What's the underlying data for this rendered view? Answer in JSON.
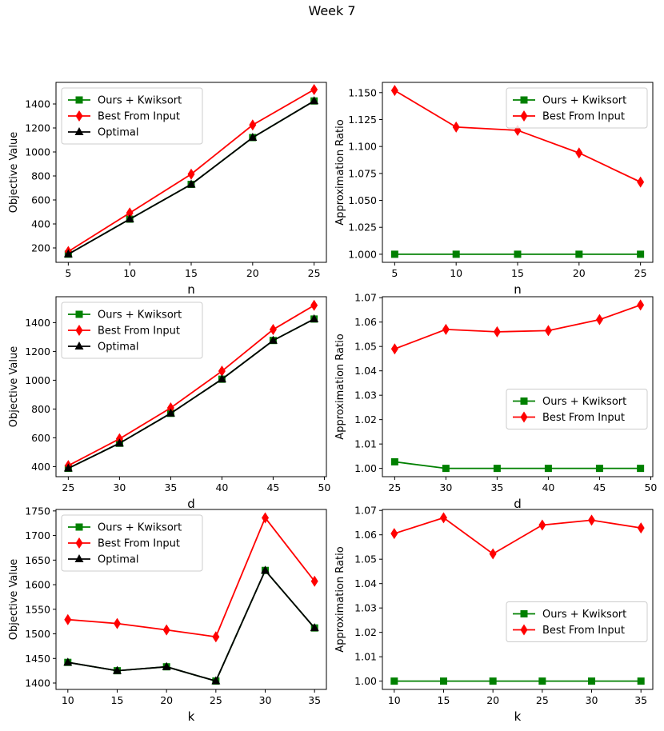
{
  "figure": {
    "title": "Week 7"
  },
  "colors": {
    "green": "#008000",
    "red": "#ff0000",
    "black": "#000000"
  },
  "chart_data": [
    {
      "type": "line",
      "xlabel": "n",
      "ylabel": "Objective Value",
      "x": [
        5,
        10,
        15,
        20,
        25
      ],
      "xlim": [
        4,
        26
      ],
      "ylim": [
        80,
        1580
      ],
      "xticks": [
        5,
        10,
        15,
        20,
        25
      ],
      "yticks": [
        200,
        400,
        600,
        800,
        1000,
        1200,
        1400
      ],
      "legend": "upper-left",
      "series": [
        {
          "name": "Ours + Kwiksort",
          "color": "#008000",
          "marker": "square",
          "values": [
            148,
            440,
            730,
            1120,
            1425
          ]
        },
        {
          "name": "Best From Input",
          "color": "#ff0000",
          "marker": "diamond",
          "values": [
            170,
            492,
            815,
            1225,
            1520
          ]
        },
        {
          "name": "Optimal",
          "color": "#000000",
          "marker": "triangle",
          "values": [
            148,
            440,
            730,
            1120,
            1425
          ]
        }
      ]
    },
    {
      "type": "line",
      "xlabel": "n",
      "ylabel": "Approximation Ratio",
      "x": [
        5,
        10,
        15,
        20,
        25
      ],
      "xlim": [
        4,
        26
      ],
      "ylim": [
        0.9925,
        1.1595
      ],
      "xticks": [
        5,
        10,
        15,
        20,
        25
      ],
      "yticks": [
        "1.000",
        "1.025",
        "1.050",
        "1.075",
        "1.100",
        "1.125",
        "1.150"
      ],
      "legend": "upper-right",
      "series": [
        {
          "name": "Ours + Kwiksort",
          "color": "#008000",
          "marker": "square",
          "values": [
            1.0,
            1.0,
            1.0,
            1.0,
            1.0
          ]
        },
        {
          "name": "Best From Input",
          "color": "#ff0000",
          "marker": "diamond",
          "values": [
            1.152,
            1.118,
            1.115,
            1.094,
            1.067
          ]
        }
      ]
    },
    {
      "type": "line",
      "xlabel": "d",
      "ylabel": "Objective Value",
      "x": [
        25,
        30,
        35,
        40,
        45,
        49
      ],
      "xlim": [
        23.8,
        50.2
      ],
      "ylim": [
        330,
        1580
      ],
      "xticks": [
        25,
        30,
        35,
        40,
        45,
        50
      ],
      "yticks": [
        400,
        600,
        800,
        1000,
        1200,
        1400
      ],
      "legend": "upper-left",
      "series": [
        {
          "name": "Ours + Kwiksort",
          "color": "#008000",
          "marker": "square",
          "values": [
            388,
            562,
            770,
            1007,
            1276,
            1425
          ]
        },
        {
          "name": "Best From Input",
          "color": "#ff0000",
          "marker": "diamond",
          "values": [
            407,
            593,
            808,
            1063,
            1352,
            1520
          ]
        },
        {
          "name": "Optimal",
          "color": "#000000",
          "marker": "triangle",
          "values": [
            388,
            562,
            770,
            1007,
            1276,
            1425
          ]
        }
      ]
    },
    {
      "type": "line",
      "xlabel": "d",
      "ylabel": "Approximation Ratio",
      "x": [
        25,
        30,
        35,
        40,
        45,
        49
      ],
      "xlim": [
        23.8,
        50.2
      ],
      "ylim": [
        0.9966,
        1.0704
      ],
      "xticks": [
        25,
        30,
        35,
        40,
        45,
        50
      ],
      "yticks": [
        "1.00",
        "1.01",
        "1.02",
        "1.03",
        "1.04",
        "1.05",
        "1.06",
        "1.07"
      ],
      "legend": "center-right",
      "series": [
        {
          "name": "Ours + Kwiksort",
          "color": "#008000",
          "marker": "square",
          "values": [
            1.0027,
            1.0,
            1.0,
            1.0,
            1.0,
            1.0
          ]
        },
        {
          "name": "Best From Input",
          "color": "#ff0000",
          "marker": "diamond",
          "values": [
            1.049,
            1.057,
            1.056,
            1.0565,
            1.061,
            1.067
          ]
        }
      ]
    },
    {
      "type": "line",
      "xlabel": "k",
      "ylabel": "Objective Value",
      "x": [
        10,
        15,
        20,
        25,
        30,
        35
      ],
      "xlim": [
        8.8,
        36.2
      ],
      "ylim": [
        1387,
        1753
      ],
      "xticks": [
        10,
        15,
        20,
        25,
        30,
        35
      ],
      "yticks": [
        1400,
        1450,
        1500,
        1550,
        1600,
        1650,
        1700,
        1750
      ],
      "legend": "upper-left",
      "series": [
        {
          "name": "Ours + Kwiksort",
          "color": "#008000",
          "marker": "square",
          "values": [
            1442,
            1425,
            1433,
            1404,
            1629,
            1512
          ]
        },
        {
          "name": "Best From Input",
          "color": "#ff0000",
          "marker": "diamond",
          "values": [
            1529,
            1521,
            1508,
            1494,
            1736,
            1607
          ]
        },
        {
          "name": "Optimal",
          "color": "#000000",
          "marker": "triangle",
          "values": [
            1442,
            1425,
            1433,
            1404,
            1629,
            1512
          ]
        }
      ]
    },
    {
      "type": "line",
      "xlabel": "k",
      "ylabel": "Approximation Ratio",
      "x": [
        10,
        15,
        20,
        25,
        30,
        35
      ],
      "xlim": [
        8.8,
        36.2
      ],
      "ylim": [
        0.9966,
        1.0704
      ],
      "xticks": [
        10,
        15,
        20,
        25,
        30,
        35
      ],
      "yticks": [
        "1.00",
        "1.01",
        "1.02",
        "1.03",
        "1.04",
        "1.05",
        "1.06",
        "1.07"
      ],
      "legend": "center-right",
      "series": [
        {
          "name": "Ours + Kwiksort",
          "color": "#008000",
          "marker": "square",
          "values": [
            1.0,
            1.0,
            1.0,
            1.0,
            1.0,
            1.0
          ]
        },
        {
          "name": "Best From Input",
          "color": "#ff0000",
          "marker": "diamond",
          "values": [
            1.0605,
            1.067,
            1.0522,
            1.064,
            1.066,
            1.0628
          ]
        }
      ]
    }
  ]
}
